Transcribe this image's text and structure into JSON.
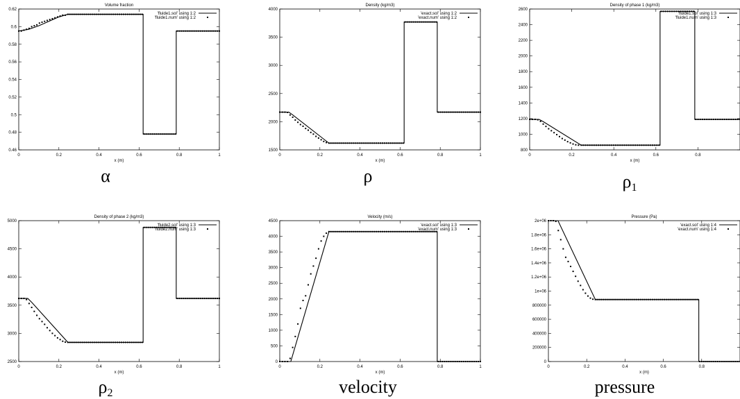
{
  "figure": {
    "panels_id_order": [
      "alpha",
      "rho",
      "rho1",
      "rho2",
      "velocity",
      "pressure"
    ]
  },
  "chart_data": [
    {
      "id": "alpha",
      "type": "line",
      "title": "Volume fraction",
      "xlabel": "x (m)",
      "caption": "α",
      "xlim": [
        0,
        1
      ],
      "ylim": [
        0.46,
        0.62
      ],
      "xticks": [
        0,
        0.2,
        0.4,
        0.6,
        0.8,
        1
      ],
      "xtick_labels": [
        "0",
        "0.2",
        "0.4",
        "0.6",
        "0.8",
        "1"
      ],
      "yticks": [
        0.46,
        0.48,
        0.5,
        0.52,
        0.54,
        0.56,
        0.58,
        0.6,
        0.62
      ],
      "ytick_labels": [
        "0.46",
        "0.48",
        "0.5",
        "0.52",
        "0.54",
        "0.56",
        "0.58",
        "0.6",
        "0.62"
      ],
      "legend": [
        "'fluide1.sol' using 1:2",
        "'fluide1.num' using 1:2"
      ],
      "legend_position": "top-right",
      "series": [
        {
          "name": "'fluide1.sol' using 1:2",
          "style": "line",
          "x": [
            0,
            0.05,
            0.1,
            0.15,
            0.2,
            0.245,
            0.62,
            0.62,
            0.785,
            0.785,
            1
          ],
          "y": [
            0.595,
            0.597,
            0.601,
            0.606,
            0.611,
            0.614,
            0.614,
            0.478,
            0.478,
            0.595,
            0.595
          ]
        },
        {
          "name": "'fluide1.num' using 1:2",
          "style": "points",
          "ranges": [
            {
              "x0": 0,
              "x1": 0.245,
              "n": 20,
              "ys": [
                0.595,
                0.595,
                0.596,
                0.597,
                0.598,
                0.6,
                0.601,
                0.602,
                0.604,
                0.605,
                0.606,
                0.607,
                0.608,
                0.609,
                0.61,
                0.611,
                0.612,
                0.613,
                0.613,
                0.614
              ]
            },
            {
              "x0": 0.255,
              "x1": 0.615,
              "n": 36,
              "y": 0.614
            },
            {
              "x0": 0.625,
              "x1": 0.78,
              "n": 16,
              "y": 0.478
            },
            {
              "x0": 0.79,
              "x1": 1,
              "n": 21,
              "y": 0.595
            }
          ]
        }
      ]
    },
    {
      "id": "rho",
      "type": "line",
      "title": "Density (kg/m3)",
      "xlabel": "x (m)",
      "caption": "ρ",
      "xlim": [
        0,
        1
      ],
      "ylim": [
        1500,
        4000
      ],
      "xticks": [
        0,
        0.2,
        0.4,
        0.6,
        0.8,
        1
      ],
      "xtick_labels": [
        "0",
        "0.2",
        "0.4",
        "0.6",
        "0.8",
        "1"
      ],
      "yticks": [
        1500,
        2000,
        2500,
        3000,
        3500,
        4000
      ],
      "ytick_labels": [
        "1500",
        "2000",
        "2500",
        "3000",
        "3500",
        "4000"
      ],
      "legend": [
        "'exact.sol' using 1:2",
        "'exact.num' using 1:2"
      ],
      "legend_position": "top-right",
      "series": [
        {
          "name": "'exact.sol' using 1:2",
          "style": "line",
          "x": [
            0,
            0.045,
            0.065,
            0.245,
            0.62,
            0.62,
            0.785,
            0.785,
            1
          ],
          "y": [
            2170,
            2170,
            2120,
            1620,
            1620,
            3770,
            3770,
            2170,
            2170
          ]
        },
        {
          "name": "'exact.num' using 1:2",
          "style": "points",
          "ranges": [
            {
              "x0": 0,
              "x1": 0.245,
              "n": 20,
              "ys": [
                2170,
                2170,
                2170,
                2165,
                2120,
                2080,
                2030,
                1990,
                1950,
                1920,
                1880,
                1850,
                1810,
                1780,
                1740,
                1710,
                1680,
                1650,
                1630,
                1620
              ]
            },
            {
              "x0": 0.255,
              "x1": 0.615,
              "n": 36,
              "y": 1620
            },
            {
              "x0": 0.625,
              "x1": 0.78,
              "n": 16,
              "y": 3770
            },
            {
              "x0": 0.79,
              "x1": 1,
              "n": 21,
              "y": 2170
            }
          ]
        }
      ]
    },
    {
      "id": "rho1",
      "type": "line",
      "title": "Density of phase 1 (kg/m3)",
      "xlabel": "x (m)",
      "caption": "ρ",
      "caption_sub": "1",
      "xlim": [
        0,
        1
      ],
      "ylim": [
        800,
        2600
      ],
      "xticks": [
        0,
        0.2,
        0.4,
        0.6,
        0.8
      ],
      "xtick_labels": [
        "0",
        "0.2",
        "0.4",
        "0.6",
        "0.8"
      ],
      "yticks": [
        800,
        1000,
        1200,
        1400,
        1600,
        1800,
        2000,
        2200,
        2400,
        2600
      ],
      "ytick_labels": [
        "800",
        "1000",
        "1200",
        "1400",
        "1600",
        "1800",
        "2000",
        "2200",
        "2400",
        "2600"
      ],
      "legend": [
        "'fluide1.sol' using 1:3",
        "'fluide1.num' using 1:3"
      ],
      "legend_position": "top-right",
      "series": [
        {
          "name": "'fluide1.sol' using 1:3",
          "style": "line",
          "x": [
            0,
            0.045,
            0.065,
            0.245,
            0.62,
            0.62,
            0.785,
            0.785,
            1
          ],
          "y": [
            1190,
            1190,
            1160,
            860,
            860,
            2570,
            2570,
            1190,
            1190
          ]
        },
        {
          "name": "'fluide1.num' using 1:3",
          "style": "points",
          "ranges": [
            {
              "x0": 0,
              "x1": 0.245,
              "n": 20,
              "ys": [
                1190,
                1190,
                1190,
                1185,
                1165,
                1130,
                1100,
                1070,
                1045,
                1020,
                995,
                970,
                945,
                925,
                905,
                890,
                875,
                865,
                860,
                860
              ]
            },
            {
              "x0": 0.255,
              "x1": 0.615,
              "n": 36,
              "y": 860
            },
            {
              "x0": 0.625,
              "x1": 0.78,
              "n": 16,
              "y": 2570
            },
            {
              "x0": 0.79,
              "x1": 1,
              "n": 21,
              "y": 1190
            }
          ]
        }
      ]
    },
    {
      "id": "rho2",
      "type": "line",
      "title": "Density of phase 2 (kg/m3)",
      "xlabel": "x (m)",
      "caption": "ρ",
      "caption_sub": "2",
      "xlim": [
        0,
        1
      ],
      "ylim": [
        2500,
        5000
      ],
      "xticks": [
        0,
        0.2,
        0.4,
        0.6,
        0.8,
        1
      ],
      "xtick_labels": [
        "0",
        "0.2",
        "0.4",
        "0.6",
        "0.8",
        "1"
      ],
      "yticks": [
        2500,
        3000,
        3500,
        4000,
        4500,
        5000
      ],
      "ytick_labels": [
        "2500",
        "3000",
        "3500",
        "4000",
        "4500",
        "5000"
      ],
      "legend": [
        "'fluide2.sol' using 1:3",
        "'fluide2.num' using 1:3"
      ],
      "legend_position": "top-right",
      "series": [
        {
          "name": "'fluide2.sol' using 1:3",
          "style": "line",
          "x": [
            0,
            0.045,
            0.065,
            0.245,
            0.62,
            0.62,
            0.785,
            0.785,
            1
          ],
          "y": [
            3620,
            3620,
            3550,
            2840,
            2840,
            4880,
            4880,
            3620,
            3620
          ]
        },
        {
          "name": "'fluide2.num' using 1:3",
          "style": "points",
          "ranges": [
            {
              "x0": 0,
              "x1": 0.245,
              "n": 20,
              "ys": [
                3620,
                3620,
                3620,
                3600,
                3530,
                3460,
                3390,
                3320,
                3260,
                3210,
                3160,
                3100,
                3050,
                3000,
                2960,
                2920,
                2890,
                2860,
                2845,
                2840
              ]
            },
            {
              "x0": 0.255,
              "x1": 0.615,
              "n": 36,
              "y": 2840
            },
            {
              "x0": 0.625,
              "x1": 0.78,
              "n": 16,
              "y": 4880
            },
            {
              "x0": 0.79,
              "x1": 1,
              "n": 21,
              "y": 3620
            }
          ]
        }
      ]
    },
    {
      "id": "velocity",
      "type": "line",
      "title": "Velocity (m/s)",
      "xlabel": "x (m)",
      "caption": "velocity",
      "xlim": [
        0,
        1
      ],
      "ylim": [
        0,
        4500
      ],
      "xticks": [
        0,
        0.2,
        0.4,
        0.6,
        0.8,
        1
      ],
      "xtick_labels": [
        "0",
        "0.2",
        "0.4",
        "0.6",
        "0.8",
        "1"
      ],
      "yticks": [
        0,
        500,
        1000,
        1500,
        2000,
        2500,
        3000,
        3500,
        4000,
        4500
      ],
      "ytick_labels": [
        "0",
        "500",
        "1000",
        "1500",
        "2000",
        "2500",
        "3000",
        "3500",
        "4000",
        "4500"
      ],
      "legend": [
        "'exact.sol' using 1:3",
        "'exact.num' using 1:3"
      ],
      "legend_position": "top-right",
      "series": [
        {
          "name": "'exact.sol' using 1:3",
          "style": "line",
          "x": [
            0,
            0.055,
            0.245,
            0.785,
            0.785,
            1
          ],
          "y": [
            0,
            0,
            4150,
            4150,
            0,
            0
          ]
        },
        {
          "name": "'exact.num' using 1:3",
          "style": "points",
          "ranges": [
            {
              "x0": 0,
              "x1": 0.245,
              "n": 20,
              "ys": [
                0,
                0,
                0,
                0,
                100,
                450,
                800,
                1200,
                1700,
                1950,
                2100,
                2450,
                2800,
                3050,
                3300,
                3600,
                3850,
                4000,
                4100,
                4150
              ]
            },
            {
              "x0": 0.255,
              "x1": 0.78,
              "n": 52,
              "y": 4150
            },
            {
              "x0": 0.79,
              "x1": 1,
              "n": 21,
              "y": 0
            }
          ]
        }
      ]
    },
    {
      "id": "pressure",
      "type": "line",
      "title": "Pressure (Pa)",
      "xlabel": "x (m)",
      "caption": "pressure",
      "xlim": [
        0,
        1
      ],
      "ylim": [
        0,
        2000000
      ],
      "xticks": [
        0,
        0.2,
        0.4,
        0.6,
        0.8
      ],
      "xtick_labels": [
        "0",
        "0.2",
        "0.4",
        "0.6",
        "0.8"
      ],
      "yticks": [
        0,
        200000,
        400000,
        600000,
        800000,
        1000000,
        1200000,
        1400000,
        1600000,
        1800000,
        2000000
      ],
      "ytick_labels": [
        "0",
        "200000",
        "400000",
        "600000",
        "800000",
        "1e+06",
        "1.2e+06",
        "1.4e+06",
        "1.6e+06",
        "1.8e+06",
        "2e+06"
      ],
      "legend": [
        "'exact.sol' using 1:4",
        "'exact.num' using 1:4"
      ],
      "legend_position": "top-right",
      "series": [
        {
          "name": "'exact.sol' using 1:4",
          "style": "line",
          "x": [
            0,
            0.05,
            0.245,
            0.785,
            0.785,
            1
          ],
          "y": [
            2000000,
            2000000,
            880000,
            880000,
            0,
            0
          ]
        },
        {
          "name": "'exact.num' using 1:4",
          "style": "points",
          "ranges": [
            {
              "x0": 0,
              "x1": 0.245,
              "n": 20,
              "ys": [
                2000000,
                2000000,
                2000000,
                1990000,
                1860000,
                1730000,
                1600000,
                1480000,
                1420000,
                1350000,
                1280000,
                1210000,
                1140000,
                1080000,
                1020000,
                970000,
                930000,
                900000,
                885000,
                880000
              ]
            },
            {
              "x0": 0.255,
              "x1": 0.78,
              "n": 52,
              "y": 880000
            },
            {
              "x0": 0.79,
              "x1": 1,
              "n": 21,
              "y": 0
            }
          ]
        }
      ]
    }
  ]
}
